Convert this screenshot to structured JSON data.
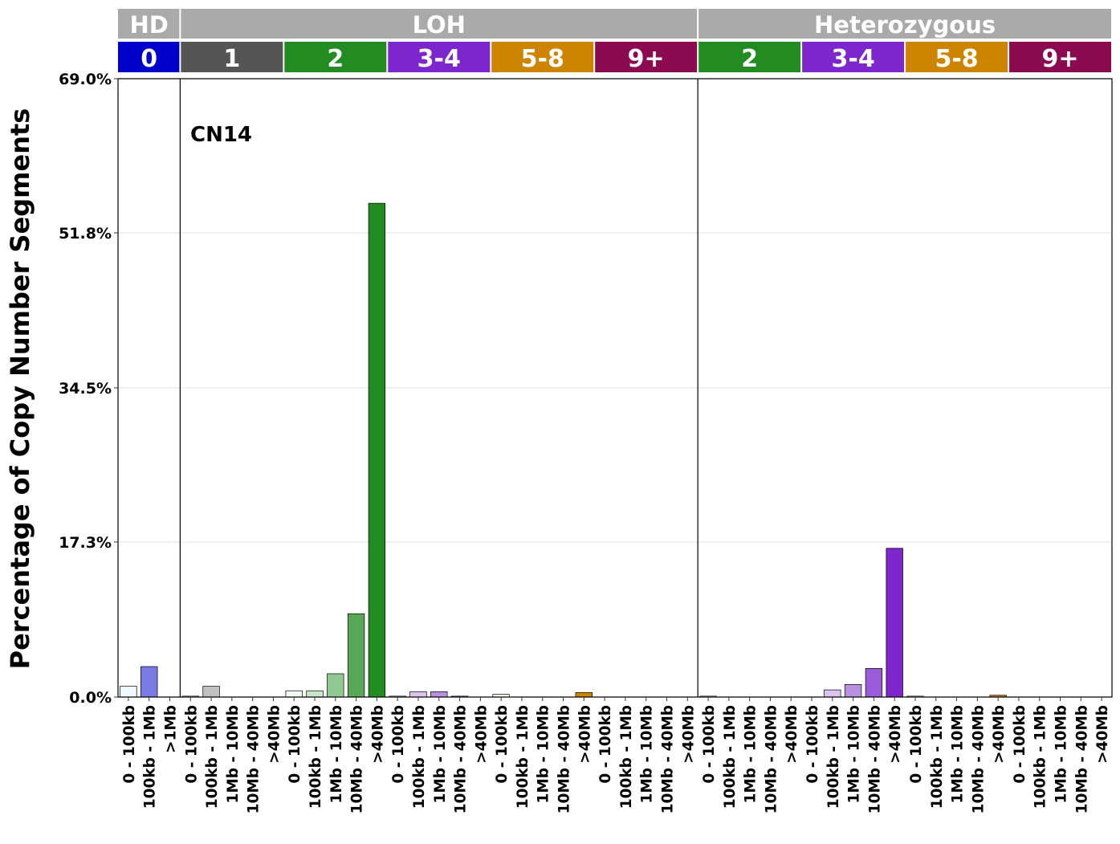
{
  "chart_data": {
    "type": "bar",
    "annotation": "CN14",
    "ylabel": "Percentage of Copy Number Segments",
    "ylim": [
      0,
      69.0
    ],
    "yticks": [
      "0.0%",
      "17.3%",
      "34.5%",
      "51.8%",
      "69.0%"
    ],
    "ytick_values": [
      0,
      17.3,
      34.5,
      51.8,
      69.0
    ],
    "grid": "horizontal",
    "groups": [
      {
        "label": "HD",
        "color": "#aaaaaa"
      },
      {
        "label": "LOH",
        "color": "#aaaaaa"
      },
      {
        "label": "Heterozygous",
        "color": "#aaaaaa"
      }
    ],
    "segments": [
      {
        "label": "0",
        "group": 0,
        "color": "#0000cd",
        "categories": [
          "0 - 100kb",
          "100kb - 1Mb",
          ">1Mb"
        ],
        "values": [
          1.2,
          3.4,
          0
        ],
        "bar_colors": [
          "#f0f8ff",
          "#7b7be6",
          "#0000cd"
        ]
      },
      {
        "label": "1",
        "group": 1,
        "color": "#555555",
        "categories": [
          "0 - 100kb",
          "100kb - 1Mb",
          "1Mb - 10Mb",
          "10Mb - 40Mb",
          ">40Mb"
        ],
        "values": [
          0.1,
          1.2,
          0,
          0,
          0
        ],
        "bar_colors": [
          "#f5f5f5",
          "#c0c0c0",
          "#a0a0a0",
          "#777777",
          "#555555"
        ]
      },
      {
        "label": "2",
        "group": 1,
        "color": "#228b22",
        "categories": [
          "0 - 100kb",
          "100kb - 1Mb",
          "1Mb - 10Mb",
          "10Mb - 40Mb",
          ">40Mb"
        ],
        "values": [
          0.7,
          0.7,
          2.6,
          9.3,
          55.1
        ],
        "bar_colors": [
          "#f2fbf2",
          "#c8e6c8",
          "#90c890",
          "#58a858",
          "#228b22"
        ]
      },
      {
        "label": "3-4",
        "group": 1,
        "color": "#7d26cd",
        "categories": [
          "0 - 100kb",
          "100kb - 1Mb",
          "1Mb - 10Mb",
          "10Mb - 40Mb",
          ">40Mb"
        ],
        "values": [
          0.1,
          0.6,
          0.6,
          0.1,
          0
        ],
        "bar_colors": [
          "#f6eefc",
          "#dcc4f0",
          "#b890e0",
          "#9a5cd6",
          "#7d26cd"
        ]
      },
      {
        "label": "5-8",
        "group": 1,
        "color": "#cd8500",
        "categories": [
          "0 - 100kb",
          "100kb - 1Mb",
          "1Mb - 10Mb",
          "10Mb - 40Mb",
          ">40Mb"
        ],
        "values": [
          0.3,
          0,
          0,
          0,
          0.5
        ],
        "bar_colors": [
          "#fdf7ec",
          "#f0d8a8",
          "#e2b45a",
          "#d89c2a",
          "#cd8500"
        ]
      },
      {
        "label": "9+",
        "group": 1,
        "color": "#8b0a50",
        "categories": [
          "0 - 100kb",
          "100kb - 1Mb",
          "1Mb - 10Mb",
          "10Mb - 40Mb",
          ">40Mb"
        ],
        "values": [
          0,
          0,
          0,
          0,
          0
        ],
        "bar_colors": [
          "#fbeef4",
          "#e0b0c8",
          "#c06090",
          "#a53470",
          "#8b0a50"
        ]
      },
      {
        "label": "2",
        "group": 2,
        "color": "#228b22",
        "categories": [
          "0 - 100kb",
          "100kb - 1Mb",
          "1Mb - 10Mb",
          "10Mb - 40Mb",
          ">40Mb"
        ],
        "values": [
          0.1,
          0,
          0,
          0,
          0
        ],
        "bar_colors": [
          "#f2fbf2",
          "#c8e6c8",
          "#90c890",
          "#58a858",
          "#228b22"
        ]
      },
      {
        "label": "3-4",
        "group": 2,
        "color": "#7d26cd",
        "categories": [
          "0 - 100kb",
          "100kb - 1Mb",
          "1Mb - 10Mb",
          "10Mb - 40Mb",
          ">40Mb"
        ],
        "values": [
          0,
          0.8,
          1.4,
          3.2,
          16.6
        ],
        "bar_colors": [
          "#f6eefc",
          "#dcc4f0",
          "#b890e0",
          "#9a5cd6",
          "#7d26cd"
        ]
      },
      {
        "label": "5-8",
        "group": 2,
        "color": "#cd8500",
        "categories": [
          "0 - 100kb",
          "100kb - 1Mb",
          "1Mb - 10Mb",
          "10Mb - 40Mb",
          ">40Mb"
        ],
        "values": [
          0.1,
          0,
          0,
          0,
          0.2
        ],
        "bar_colors": [
          "#fdf7ec",
          "#f0d8a8",
          "#e2b45a",
          "#d89c2a",
          "#cd8500"
        ]
      },
      {
        "label": "9+",
        "group": 2,
        "color": "#8b0a50",
        "categories": [
          "0 - 100kb",
          "100kb - 1Mb",
          "1Mb - 10Mb",
          "10Mb - 40Mb",
          ">40Mb"
        ],
        "values": [
          0,
          0,
          0,
          0,
          0
        ],
        "bar_colors": [
          "#fbeef4",
          "#e0b0c8",
          "#c06090",
          "#a53470",
          "#8b0a50"
        ]
      }
    ]
  }
}
